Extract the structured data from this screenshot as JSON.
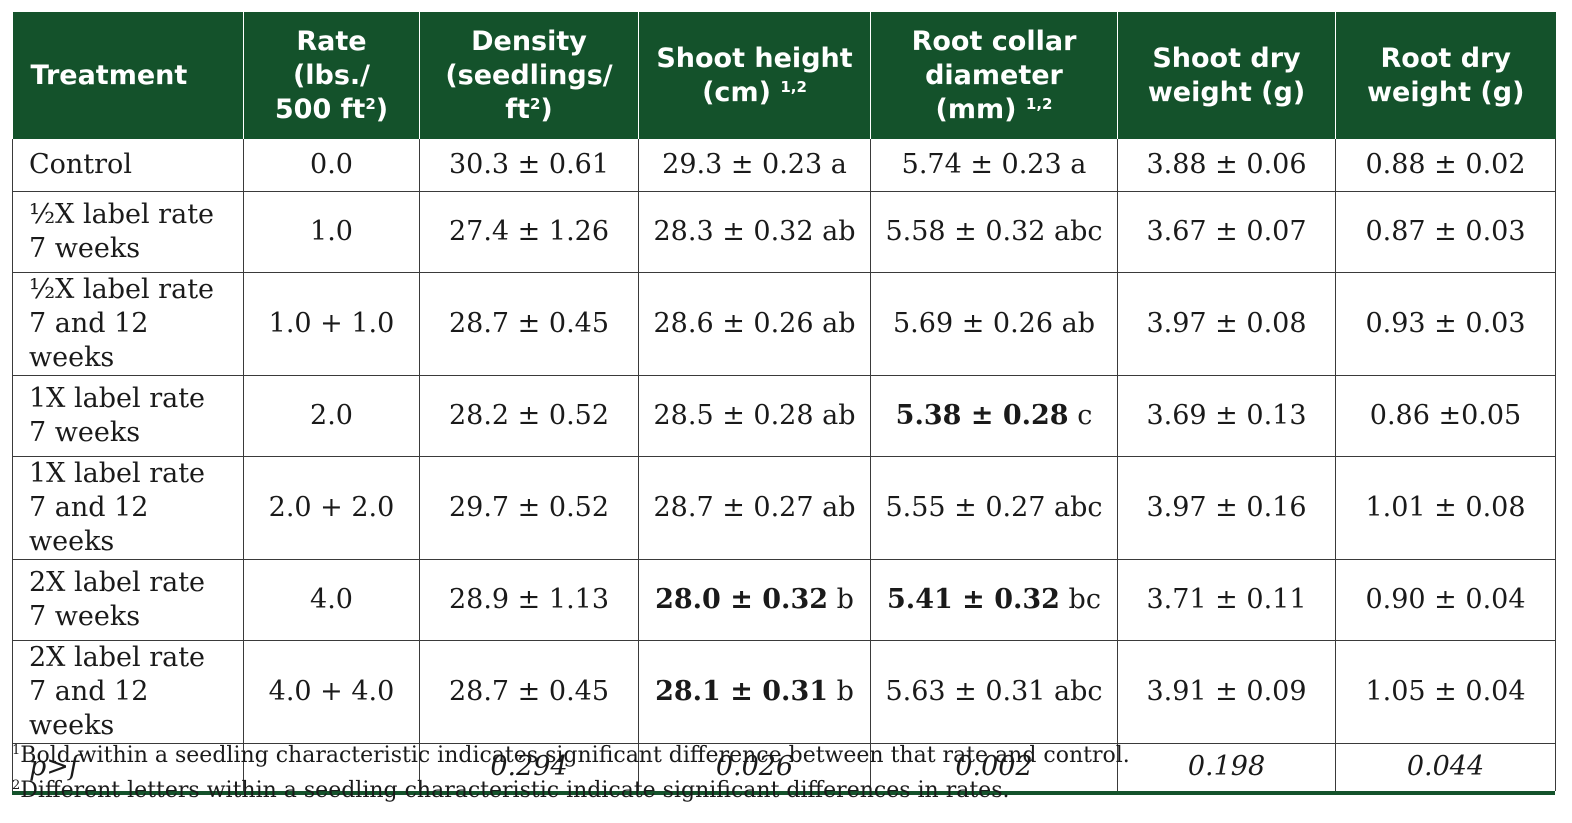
{
  "colors": {
    "header_bg": "#14522b",
    "header_text": "#ffffff",
    "rule": "#14522b"
  },
  "header": {
    "treatment": "Treatment",
    "rate": {
      "l1": "Rate",
      "l2": "(lbs./",
      "l3": "500 ft",
      "sup": "2",
      "l3_end": ")"
    },
    "density": {
      "l1": "Density",
      "l2": "(seedlings/",
      "l3": "ft",
      "sup": "2",
      "l3_end": ")"
    },
    "shoot_height": {
      "l1": "Shoot height",
      "l2": "(cm)",
      "sup": "1,2"
    },
    "root_collar": {
      "l1": "Root collar",
      "l2": "diameter",
      "l3": "(mm)",
      "sup": "1,2"
    },
    "shoot_dry": {
      "l1": "Shoot dry",
      "l2": "weight (g)"
    },
    "root_dry": {
      "l1": "Root dry",
      "l2": "weight (g)"
    }
  },
  "rows": [
    {
      "treatment": [
        "Control"
      ],
      "rate": "0.0",
      "density": "30.3 ± 0.61",
      "shoot_height": {
        "bold": "",
        "text": "29.3 ± 0.23 a"
      },
      "root_collar": {
        "bold": "",
        "text": "5.74 ± 0.23 a"
      },
      "shoot_dry": "3.88 ± 0.06",
      "root_dry": "0.88 ± 0.02"
    },
    {
      "treatment": [
        "½X label rate",
        "7 weeks"
      ],
      "rate": "1.0",
      "density": "27.4 ± 1.26",
      "shoot_height": {
        "bold": "",
        "text": "28.3 ± 0.32 ab"
      },
      "root_collar": {
        "bold": "",
        "text": "5.58 ± 0.32 abc"
      },
      "shoot_dry": "3.67 ± 0.07",
      "root_dry": "0.87 ± 0.03"
    },
    {
      "treatment": [
        "½X label rate",
        "7 and 12 weeks"
      ],
      "rate": "1.0 + 1.0",
      "density": "28.7 ± 0.45",
      "shoot_height": {
        "bold": "",
        "text": "28.6 ± 0.26 ab"
      },
      "root_collar": {
        "bold": "",
        "text": "5.69 ± 0.26 ab"
      },
      "shoot_dry": "3.97 ± 0.08",
      "root_dry": "0.93 ± 0.03"
    },
    {
      "treatment": [
        "1X label rate",
        "7 weeks"
      ],
      "rate": "2.0",
      "density": "28.2 ± 0.52",
      "shoot_height": {
        "bold": "",
        "text": "28.5 ± 0.28 ab"
      },
      "root_collar": {
        "bold": "5.38 ± 0.28",
        "text": " c"
      },
      "shoot_dry": "3.69 ± 0.13",
      "root_dry": "0.86 ±0.05"
    },
    {
      "treatment": [
        "1X label rate",
        "7 and 12 weeks"
      ],
      "rate": "2.0 + 2.0",
      "density": "29.7 ± 0.52",
      "shoot_height": {
        "bold": "",
        "text": "28.7 ± 0.27 ab"
      },
      "root_collar": {
        "bold": "",
        "text": "5.55 ± 0.27 abc"
      },
      "shoot_dry": "3.97 ± 0.16",
      "root_dry": "1.01 ± 0.08"
    },
    {
      "treatment": [
        "2X label rate",
        "7 weeks"
      ],
      "rate": "4.0",
      "density": "28.9 ± 1.13",
      "shoot_height": {
        "bold": "28.0 ± 0.32",
        "text": " b"
      },
      "root_collar": {
        "bold": "5.41 ± 0.32",
        "text": " bc"
      },
      "shoot_dry": "3.71 ± 0.11",
      "root_dry": "0.90 ± 0.04"
    },
    {
      "treatment": [
        "2X label rate",
        "7 and 12 weeks"
      ],
      "rate": "4.0 + 4.0",
      "density": "28.7 ± 0.45",
      "shoot_height": {
        "bold": "28.1 ± 0.31",
        "text": " b"
      },
      "root_collar": {
        "bold": "",
        "text": "5.63 ± 0.31 abc"
      },
      "shoot_dry": "3.91 ± 0.09",
      "root_dry": "1.05 ± 0.04"
    }
  ],
  "pf_row": {
    "label": "p>f",
    "rate": "",
    "density": "0.294",
    "shoot_height": "0.026",
    "root_collar": "0.002",
    "shoot_dry": "0.198",
    "root_dry": "0.044"
  },
  "footnotes": [
    {
      "mark": "1",
      "text": "Bold within a seedling characteristic indicates significant difference between that rate and control."
    },
    {
      "mark": "2",
      "text": "Different letters within a seedling characteristic indicate significant differences in rates."
    }
  ]
}
